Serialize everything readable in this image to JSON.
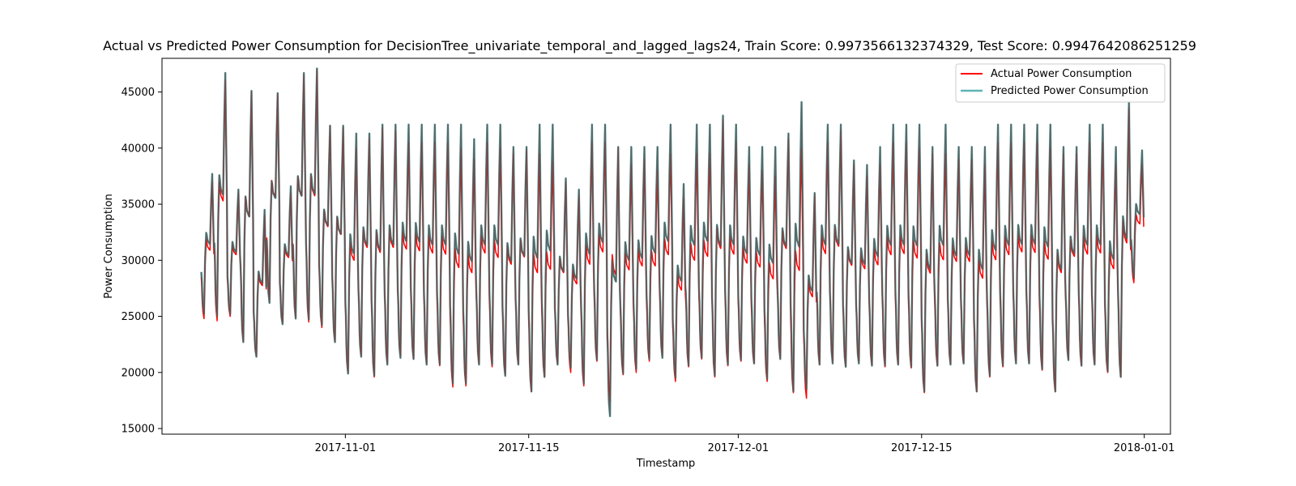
{
  "chart_data": {
    "type": "line",
    "title": "Actual vs Predicted Power Consumption for DecisionTree_univariate_temporal_and_lagged_lags24, Train Score: 0.9973566132374329, Test Score: 0.9947642086251259",
    "xlabel": "Timestamp",
    "ylabel": "Power Consumption",
    "xlim": [
      "2017-10-18",
      "2018-01-03"
    ],
    "ylim": [
      14500,
      48000
    ],
    "x_ticks": [
      "2017-11-01",
      "2017-11-15",
      "2017-12-01",
      "2017-12-15",
      "2018-01-01"
    ],
    "y_ticks": [
      15000,
      20000,
      25000,
      30000,
      35000,
      40000,
      45000
    ],
    "x_tick_labels": [
      "2017-11-01",
      "2017-11-15",
      "2017-12-01",
      "2017-12-15",
      "2018-01-01"
    ],
    "y_tick_labels": [
      "15000",
      "20000",
      "25000",
      "30000",
      "35000",
      "40000",
      "45000"
    ],
    "legend_position": "top-right",
    "grid": false,
    "x_start": "2017-10-21",
    "x_end": "2017-12-31",
    "resolution": "hourly",
    "series": [
      {
        "name": "Actual Power Consumption",
        "color": "#ff0000",
        "line_width": 1.5,
        "daily_peaks": [
          37000,
          46000,
          36000,
          45000,
          34000,
          44800,
          36000,
          46500,
          47000,
          42000,
          41800,
          40000,
          40800,
          41800,
          41500,
          40500,
          40500,
          40500,
          40500,
          40000,
          39000,
          40500,
          40000,
          39500,
          39800,
          39500,
          38800,
          37000,
          35800,
          40500,
          40500,
          40000,
          38500,
          39000,
          38000,
          39500,
          35500,
          39500,
          39500,
          42500,
          40500,
          38500,
          38000,
          37500,
          40800,
          40000,
          35800,
          40500,
          41500,
          38500,
          37500,
          38500,
          40500,
          40500,
          40000,
          39500,
          39500,
          39000,
          39000,
          38500,
          40500,
          40500,
          40500,
          40500,
          40000,
          39500,
          39500,
          40500,
          40500,
          38500,
          43500,
          38500
        ],
        "daily_troughs": [
          24800,
          24600,
          25000,
          22800,
          21500,
          26500,
          24500,
          25000,
          24500,
          24000,
          22800,
          20000,
          21500,
          19600,
          20800,
          21500,
          21200,
          20800,
          20600,
          18700,
          18800,
          20800,
          20500,
          19800,
          20800,
          18300,
          19600,
          20800,
          20000,
          18800,
          21000,
          17400,
          19800,
          20000,
          21000,
          21500,
          19200,
          20500,
          21200,
          19600,
          20600,
          21000,
          20800,
          19200,
          21300,
          18200,
          17700,
          20700,
          21000,
          20600,
          21000,
          20700,
          20500,
          20700,
          20400,
          18200,
          20600,
          20800,
          20800,
          18300,
          19600,
          20500,
          21000,
          20900,
          20200,
          18300,
          21200,
          20600,
          20800,
          20000,
          19600,
          28000
        ]
      },
      {
        "name": "Predicted Power Consumption",
        "color": "#5fb3b3",
        "line_width": 2.5,
        "daily_peaks": [
          37700,
          46700,
          36300,
          45100,
          34500,
          44900,
          36600,
          46700,
          47100,
          42000,
          42000,
          41300,
          41300,
          42100,
          42100,
          42100,
          42100,
          42100,
          42100,
          42100,
          40800,
          42100,
          42100,
          40100,
          40100,
          42100,
          42100,
          37300,
          36300,
          42100,
          42100,
          40100,
          40100,
          40100,
          40100,
          42100,
          36800,
          42100,
          42100,
          42900,
          42100,
          40100,
          40100,
          40100,
          41300,
          44100,
          36000,
          42100,
          42100,
          38900,
          38500,
          40100,
          42100,
          42100,
          42100,
          40100,
          42100,
          40100,
          40100,
          40100,
          42100,
          42100,
          42100,
          42100,
          42100,
          40100,
          40100,
          42100,
          42100,
          40100,
          44300,
          39800
        ],
        "daily_troughs": [
          25200,
          25000,
          25200,
          22700,
          21400,
          26200,
          24300,
          24800,
          24700,
          24200,
          22700,
          19900,
          21400,
          19700,
          20700,
          21300,
          21200,
          20700,
          20700,
          19000,
          19000,
          20700,
          20700,
          19700,
          20700,
          18300,
          19600,
          20700,
          20400,
          19000,
          21100,
          16100,
          19900,
          20300,
          21200,
          21300,
          19500,
          20600,
          21300,
          19700,
          20700,
          21100,
          20800,
          19400,
          21200,
          18300,
          18500,
          20700,
          20800,
          20500,
          20800,
          20600,
          20600,
          20700,
          20500,
          18300,
          20600,
          20700,
          20800,
          18300,
          19700,
          20600,
          20800,
          20800,
          20300,
          18300,
          21100,
          20600,
          20700,
          20100,
          19600,
          28400
        ]
      }
    ]
  },
  "colors": {
    "actual": "#ff0000",
    "predicted": "#5fb3b3",
    "overlap": "#595959"
  }
}
